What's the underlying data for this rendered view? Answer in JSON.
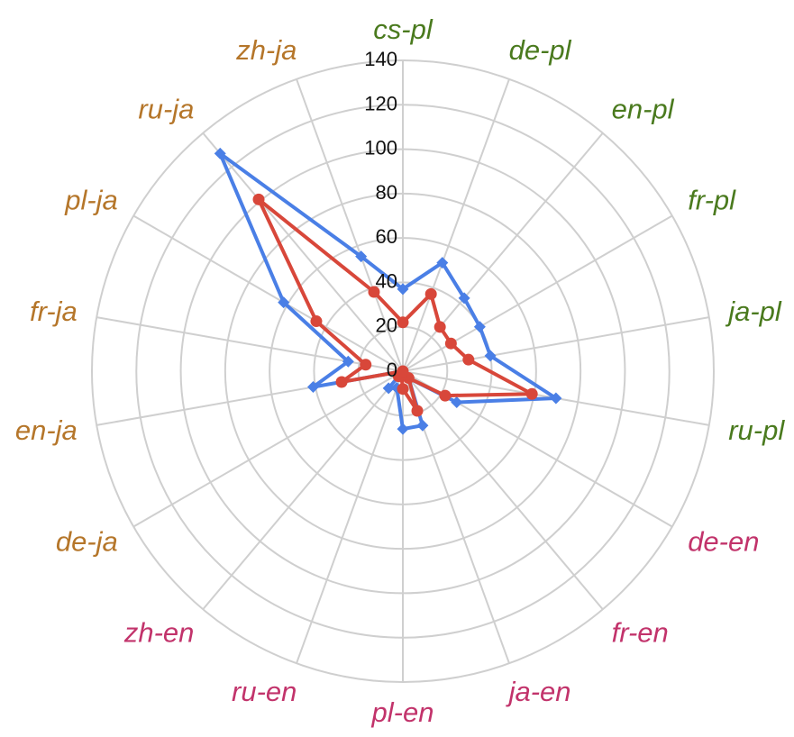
{
  "chart_data": {
    "type": "radar",
    "title": "",
    "categories": [
      "cs-pl",
      "de-pl",
      "en-pl",
      "fr-pl",
      "ja-pl",
      "ru-pl",
      "de-en",
      "fr-en",
      "ja-en",
      "pl-en",
      "ru-en",
      "zh-en",
      "de-ja",
      "en-ja",
      "fr-ja",
      "pl-ja",
      "ru-ja",
      "zh-ja"
    ],
    "category_colors": [
      "#4a7a1e",
      "#4a7a1e",
      "#4a7a1e",
      "#4a7a1e",
      "#4a7a1e",
      "#4a7a1e",
      "#c2336b",
      "#c2336b",
      "#c2336b",
      "#c2336b",
      "#c2336b",
      "#c2336b",
      "#b5762a",
      "#b5762a",
      "#b5762a",
      "#b5762a",
      "#b5762a",
      "#b5762a"
    ],
    "radial_ticks": [
      "0",
      "20",
      "40",
      "60",
      "80",
      "100",
      "120",
      "140"
    ],
    "rlim": [
      0,
      140
    ],
    "grid": true,
    "series": [
      {
        "color": "#4a7fe6",
        "marker": "diamond",
        "values": [
          37,
          52,
          43,
          40,
          40,
          70,
          28,
          4,
          26,
          26,
          8,
          10,
          0,
          41,
          25,
          62,
          128,
          55
        ]
      },
      {
        "color": "#d8473a",
        "marker": "circle",
        "values": [
          22,
          37,
          26,
          25,
          30,
          59,
          22,
          4,
          19,
          8,
          2,
          3,
          0,
          28,
          17,
          45,
          101,
          38
        ]
      }
    ]
  }
}
